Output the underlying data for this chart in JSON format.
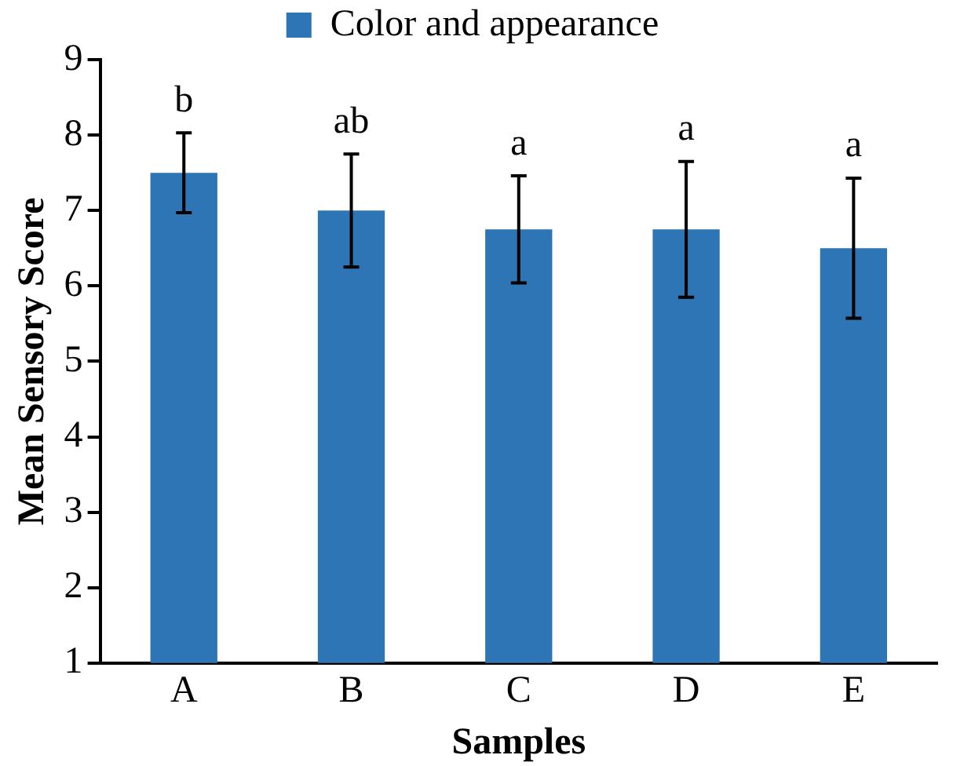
{
  "chart_data": {
    "type": "bar",
    "xlabel": "Samples",
    "ylabel": "Mean Sensory Score",
    "categories": [
      "A",
      "B",
      "C",
      "D",
      "E"
    ],
    "series": [
      {
        "name": "Color and appearance",
        "color": "#2e75b6",
        "values": [
          7.5,
          7.0,
          6.75,
          6.75,
          6.5
        ],
        "errors": [
          0.53,
          0.75,
          0.71,
          0.9,
          0.93
        ]
      }
    ],
    "ylim": [
      1,
      9
    ],
    "yticks": [
      1,
      2,
      3,
      4,
      5,
      6,
      7,
      8,
      9
    ],
    "grid": false,
    "legend": "top",
    "annotations": [
      "b",
      "ab",
      "a",
      "a",
      "a"
    ]
  }
}
